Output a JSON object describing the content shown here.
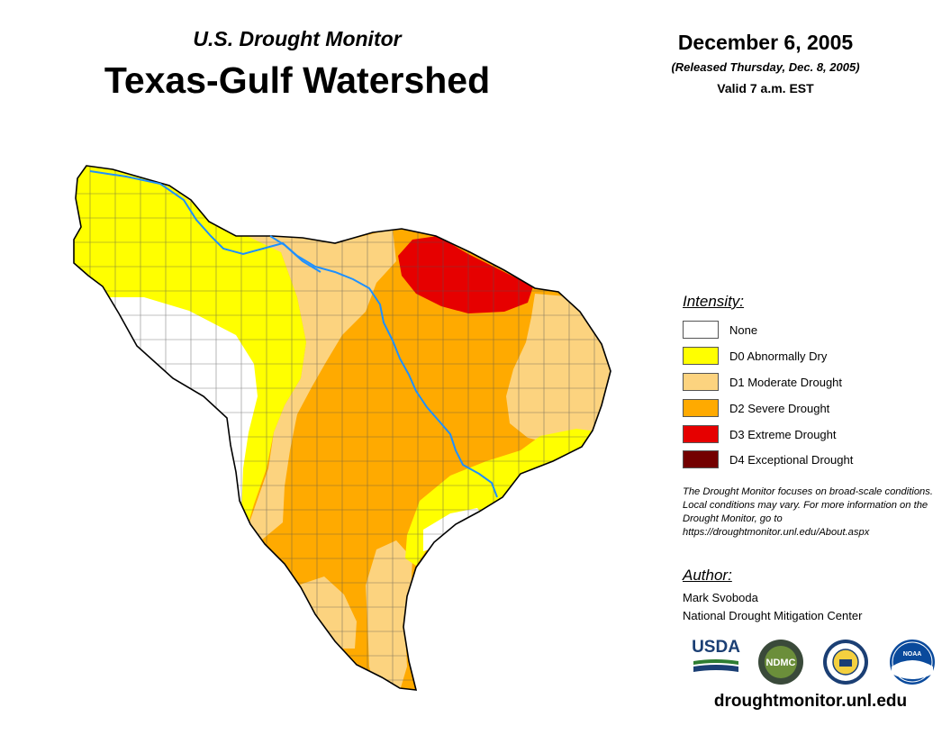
{
  "header": {
    "subtitle": "U.S. Drought Monitor",
    "title": "Texas-Gulf Watershed",
    "date": "December 6, 2005",
    "released": "(Released Thursday, Dec. 8, 2005)",
    "valid": "Valid 7 a.m. EST"
  },
  "legend": {
    "heading": "Intensity:",
    "items": [
      {
        "label": "None",
        "color": "#ffffff"
      },
      {
        "label": "D0 Abnormally Dry",
        "color": "#ffff00"
      },
      {
        "label": "D1 Moderate Drought",
        "color": "#fcd37f"
      },
      {
        "label": "D2 Severe Drought",
        "color": "#ffaa00"
      },
      {
        "label": "D3 Extreme Drought",
        "color": "#e60000"
      },
      {
        "label": "D4 Exceptional Drought",
        "color": "#730000"
      }
    ]
  },
  "note": "The Drought Monitor focuses on broad-scale conditions. Local conditions may vary. For more information on the Drought Monitor, go to https://droughtmonitor.unl.edu/About.aspx",
  "author": {
    "heading": "Author:",
    "name": "Mark Svoboda",
    "organization": "National Drought Mitigation Center"
  },
  "logos": {
    "usda": "USDA",
    "ndmc": "NDMC",
    "noaa": "NOAA"
  },
  "footer_url": "droughtmonitor.unl.edu",
  "map": {
    "river_color": "#1e90ff"
  }
}
